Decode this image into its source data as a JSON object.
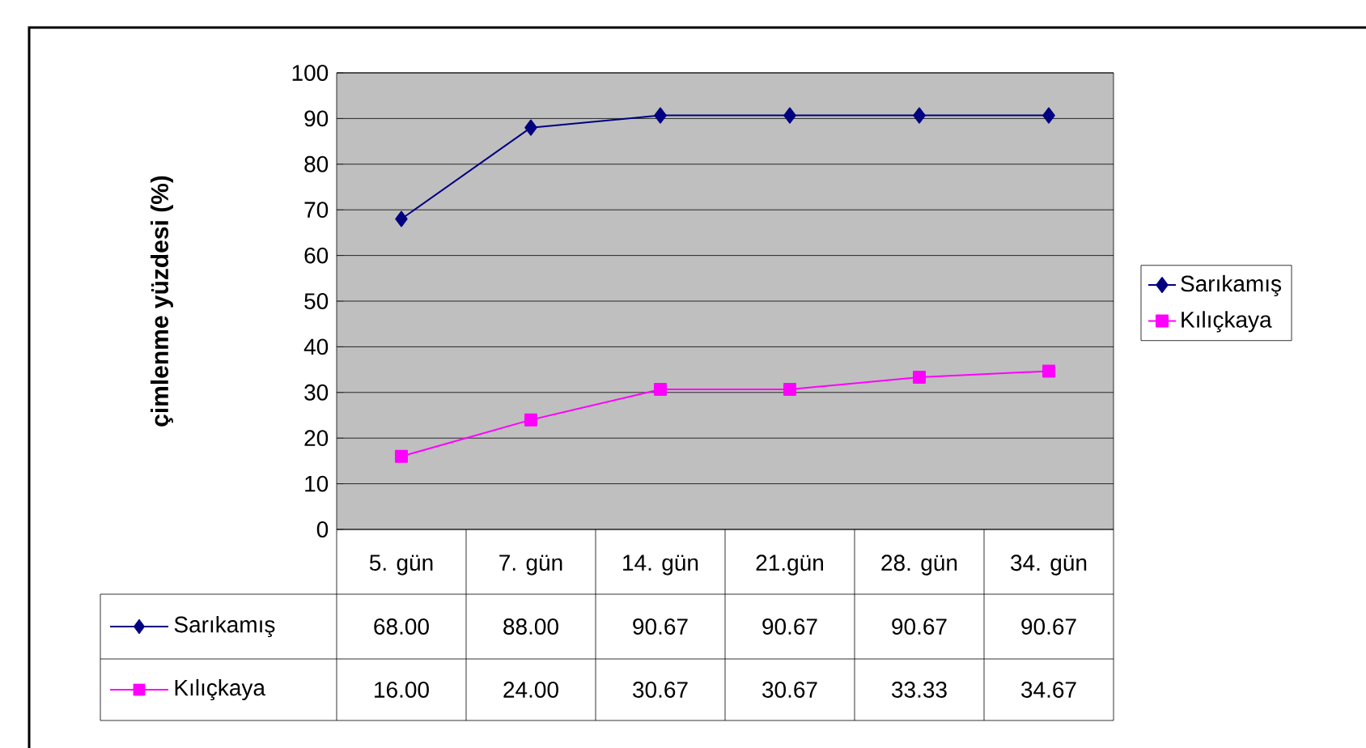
{
  "chart_data": {
    "type": "line",
    "ylabel": "çimlenme yüzdesi (%)",
    "categories": [
      "5. gün",
      "7. gün",
      "14. gün",
      "21.gün",
      "28. gün",
      "34. gün"
    ],
    "ylim": [
      0,
      100
    ],
    "yticks": [
      0,
      10,
      20,
      30,
      40,
      50,
      60,
      70,
      80,
      90,
      100
    ],
    "grid": "y",
    "legend": "right",
    "series": [
      {
        "name": "Sarıkamış",
        "color": "#000080",
        "marker": "diamond",
        "values": [
          68.0,
          88.0,
          90.67,
          90.67,
          90.67,
          90.67
        ],
        "value_labels": [
          "68.00",
          "88.00",
          "90.67",
          "90.67",
          "90.67",
          "90.67"
        ]
      },
      {
        "name": "Kılıçkaya",
        "color": "#ff00ff",
        "marker": "square",
        "values": [
          16.0,
          24.0,
          30.67,
          30.67,
          33.33,
          34.67
        ],
        "value_labels": [
          "16.00",
          "24.00",
          "30.67",
          "30.67",
          "33.33",
          "34.67"
        ]
      }
    ]
  }
}
